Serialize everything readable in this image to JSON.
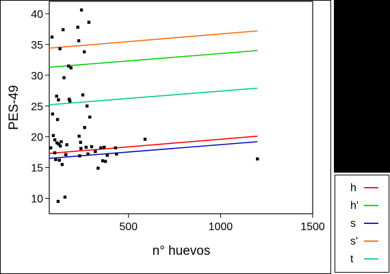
{
  "chart_data": {
    "type": "scatter",
    "xlabel": "n° huevos",
    "ylabel": "PES-49",
    "xlim": [
      70,
      1500
    ],
    "ylim": [
      7.5,
      42
    ],
    "x_ticks": [
      500,
      1000,
      1500
    ],
    "y_ticks": [
      10,
      15,
      20,
      25,
      30,
      35,
      40
    ],
    "grid": false,
    "legend_position": "bottom-right outside",
    "points": [
      {
        "x": 78,
        "y": 18.2
      },
      {
        "x": 85,
        "y": 36.2
      },
      {
        "x": 88,
        "y": 23.7
      },
      {
        "x": 92,
        "y": 20.2
      },
      {
        "x": 100,
        "y": 19.5
      },
      {
        "x": 100,
        "y": 17.4
      },
      {
        "x": 105,
        "y": 16.3
      },
      {
        "x": 110,
        "y": 26.6
      },
      {
        "x": 112,
        "y": 19.0
      },
      {
        "x": 115,
        "y": 22.8
      },
      {
        "x": 118,
        "y": 9.5
      },
      {
        "x": 120,
        "y": 26.0
      },
      {
        "x": 122,
        "y": 18.8
      },
      {
        "x": 125,
        "y": 16.2
      },
      {
        "x": 128,
        "y": 34.3
      },
      {
        "x": 130,
        "y": 18.5
      },
      {
        "x": 135,
        "y": 19.2
      },
      {
        "x": 140,
        "y": 15.5
      },
      {
        "x": 145,
        "y": 37.4
      },
      {
        "x": 150,
        "y": 29.6
      },
      {
        "x": 155,
        "y": 10.2
      },
      {
        "x": 160,
        "y": 17.1
      },
      {
        "x": 165,
        "y": 18.7
      },
      {
        "x": 175,
        "y": 31.5
      },
      {
        "x": 178,
        "y": 26.1
      },
      {
        "x": 182,
        "y": 25.8
      },
      {
        "x": 188,
        "y": 31.2
      },
      {
        "x": 225,
        "y": 37.8
      },
      {
        "x": 230,
        "y": 35.6
      },
      {
        "x": 232,
        "y": 20.1
      },
      {
        "x": 235,
        "y": 16.9
      },
      {
        "x": 240,
        "y": 19.1
      },
      {
        "x": 242,
        "y": 18.1
      },
      {
        "x": 245,
        "y": 40.6
      },
      {
        "x": 252,
        "y": 26.8
      },
      {
        "x": 260,
        "y": 33.8
      },
      {
        "x": 262,
        "y": 21.5
      },
      {
        "x": 270,
        "y": 18.3
      },
      {
        "x": 275,
        "y": 25.0
      },
      {
        "x": 280,
        "y": 17.2
      },
      {
        "x": 285,
        "y": 38.6
      },
      {
        "x": 290,
        "y": 23.2
      },
      {
        "x": 300,
        "y": 18.4
      },
      {
        "x": 320,
        "y": 17.6
      },
      {
        "x": 335,
        "y": 14.9
      },
      {
        "x": 350,
        "y": 18.2
      },
      {
        "x": 360,
        "y": 16.1
      },
      {
        "x": 368,
        "y": 18.3
      },
      {
        "x": 375,
        "y": 16.0
      },
      {
        "x": 385,
        "y": 17.0
      },
      {
        "x": 430,
        "y": 18.2
      },
      {
        "x": 435,
        "y": 17.2
      },
      {
        "x": 590,
        "y": 19.6
      },
      {
        "x": 1200,
        "y": 16.4
      }
    ],
    "series": [
      {
        "name": "h",
        "color": "#ff0000",
        "x": [
          70,
          1200
        ],
        "y": [
          17.3,
          20.1
        ]
      },
      {
        "name": "h'",
        "color": "#00cc00",
        "x": [
          70,
          1200
        ],
        "y": [
          31.3,
          34.0
        ]
      },
      {
        "name": "s",
        "color": "#0000cc",
        "x": [
          70,
          1200
        ],
        "y": [
          16.5,
          19.2
        ]
      },
      {
        "name": "s'",
        "color": "#ff6600",
        "x": [
          70,
          1200
        ],
        "y": [
          34.4,
          37.2
        ]
      },
      {
        "name": "t",
        "color": "#00cc88",
        "x": [
          70,
          1200
        ],
        "y": [
          25.2,
          27.9
        ]
      }
    ]
  }
}
